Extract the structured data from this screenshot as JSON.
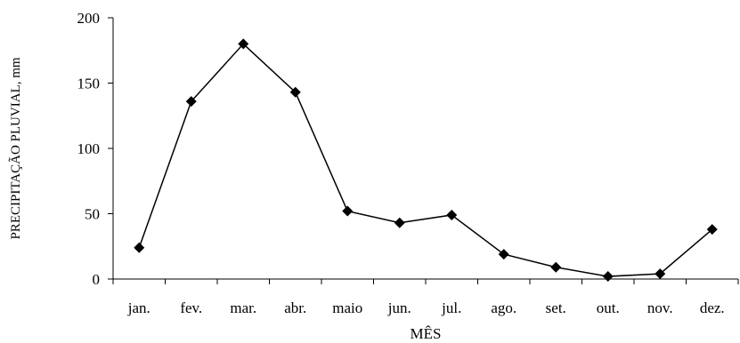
{
  "chart_data": {
    "type": "line",
    "title": "",
    "xlabel": "MÊS",
    "ylabel": "PRECIPITAÇÃO PLUVIAL, mm",
    "categories": [
      "jan.",
      "fev.",
      "mar.",
      "abr.",
      "maio",
      "jun.",
      "jul.",
      "ago.",
      "set.",
      "out.",
      "nov.",
      "dez."
    ],
    "series": [
      {
        "values": [
          24,
          136,
          180,
          143,
          52,
          43,
          49,
          19,
          9,
          2,
          4,
          38
        ],
        "marker": "diamond",
        "color": "#000000"
      }
    ],
    "ylim": [
      0,
      200
    ],
    "yticks": [
      0,
      50,
      100,
      150,
      200
    ],
    "grid": false,
    "legend": "none"
  }
}
